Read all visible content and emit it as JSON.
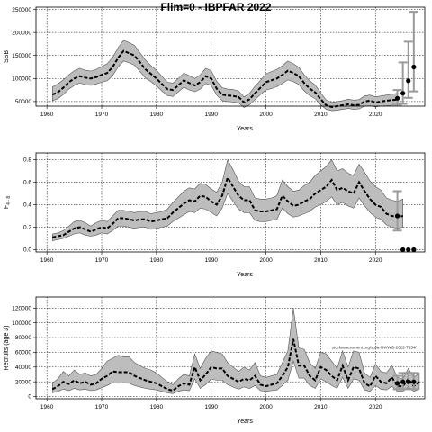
{
  "title": "Flim=0 - IBPFAR 2022",
  "chart_data": [
    {
      "type": "line",
      "ylabel": "SSB",
      "xlabel": "Years",
      "xlim": [
        1958,
        2029
      ],
      "ylim": [
        40000,
        255000
      ],
      "xticks": [
        1960,
        1970,
        1980,
        1990,
        2000,
        2010,
        2020
      ],
      "yticks": [
        50000,
        100000,
        150000,
        200000,
        250000
      ],
      "grid": true,
      "annotation": "",
      "historical": {
        "start_year": 1961,
        "median": [
          65000,
          70000,
          80000,
          92000,
          100000,
          105000,
          102000,
          100000,
          103000,
          108000,
          112000,
          125000,
          145000,
          160000,
          155000,
          150000,
          135000,
          120000,
          110000,
          100000,
          88000,
          77000,
          75000,
          85000,
          96000,
          90000,
          85000,
          92000,
          105000,
          100000,
          78000,
          65000,
          63000,
          62000,
          60000,
          48000,
          55000,
          68000,
          80000,
          92000,
          96000,
          100000,
          108000,
          117000,
          112000,
          105000,
          90000,
          78000,
          70000,
          55000,
          42000,
          38000,
          40000,
          42000,
          44000,
          42000,
          43000,
          50000,
          52000,
          48000,
          50000,
          52000,
          53000,
          54000
        ],
        "upper": [
          82000,
          88000,
          97000,
          108000,
          117000,
          122000,
          118000,
          116000,
          120000,
          126000,
          132000,
          146000,
          167000,
          183000,
          178000,
          172000,
          156000,
          140000,
          128000,
          118000,
          105000,
          92000,
          90000,
          100000,
          112000,
          106000,
          100000,
          108000,
          122000,
          117000,
          94000,
          80000,
          77000,
          76000,
          73000,
          60000,
          68000,
          83000,
          96000,
          110000,
          115000,
          120000,
          128000,
          138000,
          132000,
          124000,
          108000,
          95000,
          86000,
          69000,
          53000,
          48000,
          50000,
          52000,
          55000,
          53000,
          54000,
          62000,
          64000,
          60000,
          62000,
          64000,
          66000,
          68000
        ],
        "lower": [
          52000,
          56000,
          65000,
          77000,
          85000,
          90000,
          87000,
          85000,
          88000,
          92000,
          95000,
          106000,
          125000,
          138000,
          134000,
          129000,
          115000,
          101000,
          93000,
          84000,
          73000,
          63000,
          61000,
          71000,
          81000,
          75000,
          71000,
          77000,
          89000,
          85000,
          64000,
          52000,
          50000,
          49000,
          47000,
          37000,
          43000,
          54000,
          65000,
          75000,
          78000,
          82000,
          89000,
          97000,
          93000,
          87000,
          73000,
          63000,
          56000,
          43000,
          33000,
          30000,
          31000,
          33000,
          35000,
          33000,
          34000,
          40000,
          41000,
          38000,
          40000,
          41000,
          42000,
          43000
        ]
      },
      "projection": {
        "years": [
          2024,
          2025,
          2026,
          2027
        ],
        "median": [
          57000,
          68000,
          95000,
          125000
        ],
        "upper": [
          75000,
          135000,
          180000,
          245000
        ],
        "lower": [
          43000,
          45000,
          58000,
          72000
        ]
      }
    },
    {
      "type": "line",
      "ylabel": "F",
      "ylabel_sub": "4 - 8",
      "xlabel": "Years",
      "xlim": [
        1958,
        2029
      ],
      "ylim": [
        -0.02,
        0.86
      ],
      "xticks": [
        1960,
        1970,
        1980,
        1990,
        2000,
        2010,
        2020
      ],
      "yticks": [
        0.0,
        0.2,
        0.4,
        0.6,
        0.8
      ],
      "yticklabels": [
        "0.0",
        "0.2",
        "0.4",
        "0.6",
        "0.8"
      ],
      "grid": true,
      "annotation": "",
      "historical": {
        "start_year": 1961,
        "median": [
          0.11,
          0.12,
          0.13,
          0.16,
          0.19,
          0.2,
          0.18,
          0.16,
          0.18,
          0.2,
          0.19,
          0.23,
          0.28,
          0.28,
          0.27,
          0.26,
          0.27,
          0.27,
          0.25,
          0.26,
          0.27,
          0.28,
          0.33,
          0.37,
          0.41,
          0.44,
          0.43,
          0.48,
          0.47,
          0.43,
          0.4,
          0.48,
          0.64,
          0.56,
          0.48,
          0.44,
          0.44,
          0.35,
          0.34,
          0.34,
          0.35,
          0.36,
          0.48,
          0.43,
          0.39,
          0.4,
          0.43,
          0.45,
          0.5,
          0.53,
          0.56,
          0.62,
          0.53,
          0.55,
          0.52,
          0.5,
          0.6,
          0.52,
          0.45,
          0.4,
          0.38,
          0.32,
          0.3,
          0.29,
          0.3
        ],
        "upper": [
          0.14,
          0.15,
          0.17,
          0.21,
          0.25,
          0.26,
          0.24,
          0.21,
          0.24,
          0.26,
          0.25,
          0.3,
          0.35,
          0.35,
          0.34,
          0.33,
          0.34,
          0.34,
          0.32,
          0.33,
          0.34,
          0.36,
          0.42,
          0.47,
          0.52,
          0.55,
          0.54,
          0.59,
          0.58,
          0.54,
          0.51,
          0.6,
          0.8,
          0.71,
          0.61,
          0.56,
          0.56,
          0.46,
          0.45,
          0.45,
          0.46,
          0.48,
          0.62,
          0.56,
          0.52,
          0.53,
          0.57,
          0.6,
          0.66,
          0.7,
          0.74,
          0.8,
          0.7,
          0.72,
          0.68,
          0.66,
          0.76,
          0.69,
          0.61,
          0.56,
          0.53,
          0.46,
          0.44,
          0.43,
          0.45
        ],
        "lower": [
          0.08,
          0.09,
          0.1,
          0.12,
          0.14,
          0.15,
          0.13,
          0.12,
          0.13,
          0.15,
          0.14,
          0.17,
          0.21,
          0.21,
          0.2,
          0.19,
          0.2,
          0.2,
          0.18,
          0.19,
          0.2,
          0.21,
          0.25,
          0.28,
          0.31,
          0.34,
          0.33,
          0.37,
          0.36,
          0.33,
          0.3,
          0.37,
          0.5,
          0.43,
          0.36,
          0.33,
          0.33,
          0.26,
          0.25,
          0.25,
          0.26,
          0.27,
          0.37,
          0.32,
          0.29,
          0.3,
          0.32,
          0.34,
          0.38,
          0.4,
          0.43,
          0.47,
          0.4,
          0.42,
          0.39,
          0.37,
          0.46,
          0.39,
          0.33,
          0.29,
          0.27,
          0.22,
          0.2,
          0.19,
          0.2
        ]
      },
      "projection": {
        "years": [
          2024,
          2025,
          2026,
          2027
        ],
        "median": [
          0.3,
          0.0,
          0.0,
          0.0
        ],
        "upper": [
          0.52,
          null,
          null,
          null
        ],
        "lower": [
          0.17,
          null,
          null,
          null
        ]
      }
    },
    {
      "type": "line",
      "ylabel": "Recruits (age 3)",
      "xlabel": "Years",
      "xlim": [
        1958,
        2029
      ],
      "ylim": [
        -3000,
        135000
      ],
      "xticks": [
        1960,
        1970,
        1980,
        1990,
        2000,
        2010,
        2020
      ],
      "yticks": [
        0,
        20000,
        40000,
        60000,
        80000,
        100000,
        120000
      ],
      "grid": true,
      "annotation": "stockassessment.org/sulia-NWWG-2022-T154/",
      "historical": {
        "start_year": 1961,
        "median": [
          10000,
          14000,
          20000,
          17000,
          22000,
          18000,
          20000,
          16000,
          18000,
          24000,
          28000,
          34000,
          33000,
          33000,
          33000,
          28000,
          25000,
          22000,
          20000,
          18000,
          14000,
          10000,
          8000,
          14000,
          18000,
          16000,
          40000,
          22000,
          30000,
          40000,
          38000,
          38000,
          28000,
          24000,
          20000,
          24000,
          22000,
          28000,
          16000,
          14000,
          16000,
          18000,
          28000,
          40000,
          78000,
          42000,
          42000,
          28000,
          22000,
          40000,
          36000,
          28000,
          22000,
          42000,
          22000,
          40000,
          38000,
          18000,
          14000,
          28000,
          20000,
          18000,
          26000,
          14000,
          14000,
          24000,
          14000,
          20000
        ],
        "upper": [
          18000,
          24000,
          34000,
          28000,
          36000,
          30000,
          32000,
          28000,
          30000,
          38000,
          48000,
          52000,
          56000,
          54000,
          54000,
          46000,
          42000,
          38000,
          36000,
          32000,
          26000,
          20000,
          16000,
          24000,
          30000,
          28000,
          58000,
          38000,
          52000,
          62000,
          60000,
          58000,
          46000,
          40000,
          34000,
          40000,
          36000,
          46000,
          28000,
          26000,
          28000,
          30000,
          46000,
          62000,
          120000,
          66000,
          64000,
          46000,
          38000,
          60000,
          58000,
          48000,
          38000,
          62000,
          40000,
          62000,
          60000,
          32000,
          26000,
          44000,
          34000,
          32000,
          42000,
          26000,
          24000,
          38000,
          26000,
          32000
        ],
        "lower": [
          5000,
          7000,
          10000,
          8000,
          11000,
          9000,
          10000,
          8000,
          9000,
          12000,
          15000,
          19000,
          18000,
          19000,
          18000,
          15000,
          13000,
          11000,
          10000,
          9000,
          7000,
          5000,
          4000,
          7000,
          9000,
          8000,
          24000,
          11000,
          16000,
          24000,
          22000,
          22000,
          16000,
          13000,
          10000,
          13000,
          11000,
          15000,
          8000,
          7000,
          8000,
          9000,
          15000,
          22000,
          48000,
          25000,
          25000,
          15000,
          11000,
          24000,
          20000,
          15000,
          11000,
          26000,
          11000,
          24000,
          22000,
          9000,
          7000,
          15000,
          10000,
          9000,
          14000,
          7000,
          7000,
          13000,
          7000,
          10000
        ]
      },
      "projection": {
        "years": [
          2024,
          2025,
          2026,
          2027
        ],
        "median": [
          18000,
          20000,
          20000,
          20000
        ],
        "upper": [
          28000,
          32000,
          32000,
          32000
        ],
        "lower": [
          10000,
          10000,
          10000,
          10000
        ]
      }
    }
  ]
}
